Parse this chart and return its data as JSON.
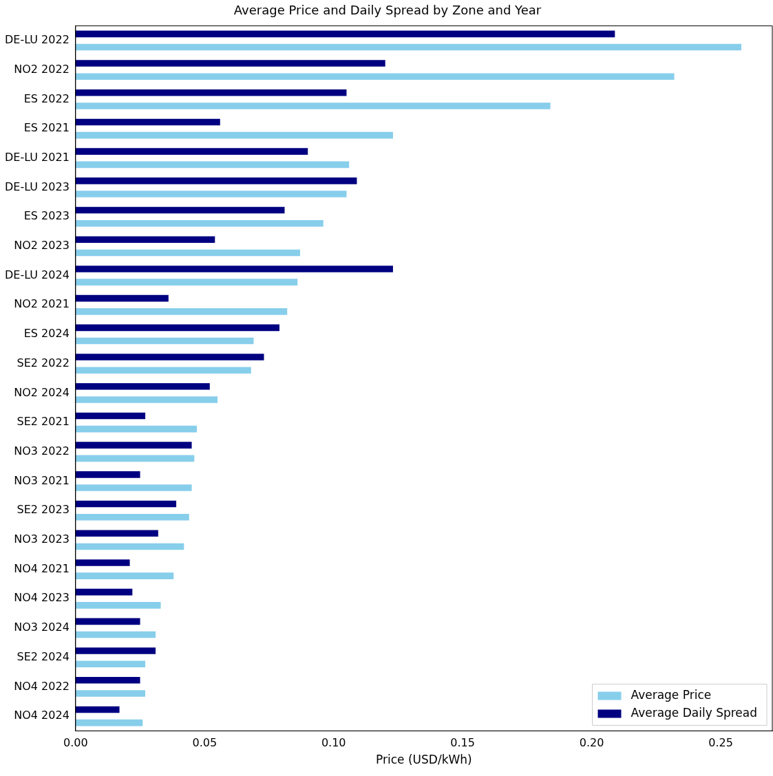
{
  "chart_data": {
    "type": "bar",
    "orientation": "horizontal",
    "title": "Average Price and Daily Spread by Zone and Year",
    "xlabel": "Price (USD/kWh)",
    "categories": [
      "DE-LU 2022",
      "NO2 2022",
      "ES 2022",
      "ES 2021",
      "DE-LU 2021",
      "DE-LU 2023",
      "ES 2023",
      "NO2 2023",
      "DE-LU 2024",
      "NO2 2021",
      "ES 2024",
      "SE2 2022",
      "NO2 2024",
      "SE2 2021",
      "NO3 2022",
      "NO3 2021",
      "SE2 2023",
      "NO3 2023",
      "NO4 2021",
      "NO4 2023",
      "NO3 2024",
      "SE2 2024",
      "NO4 2022",
      "NO4 2024"
    ],
    "series": [
      {
        "name": "Average Price",
        "color": "#87ceeb",
        "values": [
          0.258,
          0.232,
          0.184,
          0.123,
          0.106,
          0.105,
          0.096,
          0.087,
          0.086,
          0.082,
          0.069,
          0.068,
          0.055,
          0.047,
          0.046,
          0.045,
          0.044,
          0.042,
          0.038,
          0.033,
          0.031,
          0.027,
          0.027,
          0.026
        ]
      },
      {
        "name": "Average Daily Spread",
        "color": "#000080",
        "values": [
          0.209,
          0.12,
          0.105,
          0.056,
          0.09,
          0.109,
          0.081,
          0.054,
          0.123,
          0.036,
          0.079,
          0.073,
          0.052,
          0.027,
          0.045,
          0.025,
          0.039,
          0.032,
          0.021,
          0.022,
          0.025,
          0.031,
          0.025,
          0.017
        ]
      }
    ],
    "xlim": [
      0,
      0.27
    ],
    "xticks": [
      {
        "value": 0,
        "label": "0.00"
      },
      {
        "value": 0.05,
        "label": "0.05"
      },
      {
        "value": 0.1,
        "label": "0.10"
      },
      {
        "value": 0.15,
        "label": "0.15"
      },
      {
        "value": 0.2,
        "label": "0.20"
      },
      {
        "value": 0.25,
        "label": "0.25"
      }
    ],
    "legend": "bottom right"
  }
}
